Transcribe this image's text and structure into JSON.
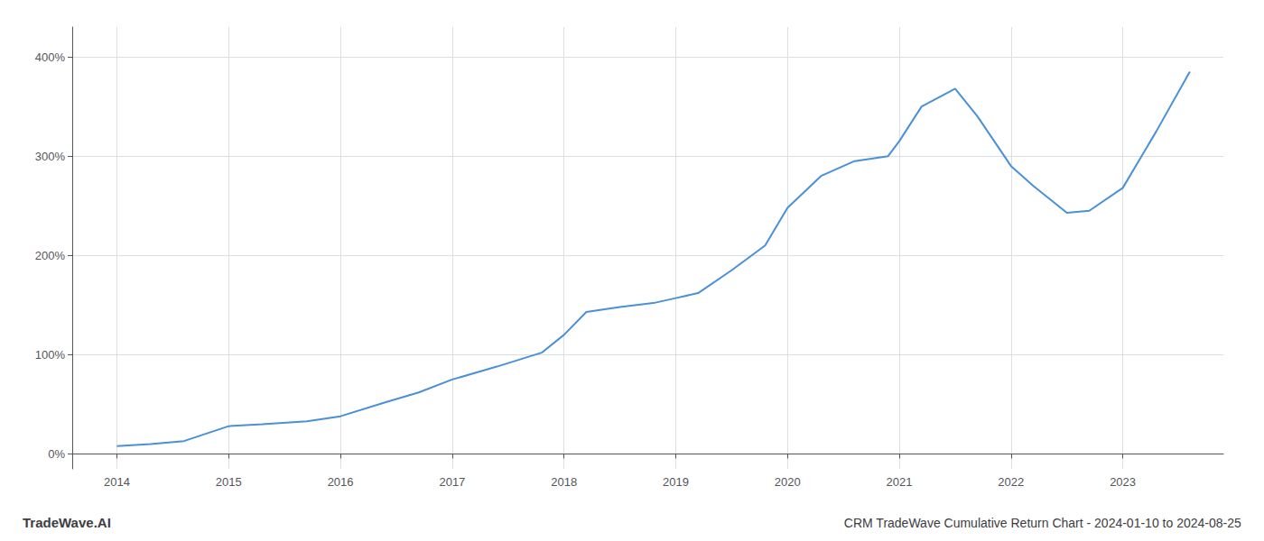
{
  "chart_data": {
    "type": "line",
    "title": "CRM TradeWave Cumulative Return Chart - 2024-01-10 to 2024-08-25",
    "annotations": [
      "TradeWave.AI"
    ],
    "x": [
      2014.0,
      2014.3,
      2014.6,
      2015.0,
      2015.3,
      2015.7,
      2016.0,
      2016.4,
      2016.7,
      2017.0,
      2017.4,
      2017.8,
      2018.0,
      2018.2,
      2018.5,
      2018.8,
      2019.0,
      2019.2,
      2019.5,
      2019.8,
      2020.0,
      2020.3,
      2020.6,
      2020.9,
      2021.0,
      2021.2,
      2021.5,
      2021.7,
      2022.0,
      2022.2,
      2022.5,
      2022.7,
      2023.0,
      2023.3,
      2023.6
    ],
    "values": [
      8,
      10,
      13,
      28,
      30,
      33,
      38,
      52,
      62,
      75,
      88,
      102,
      120,
      143,
      148,
      152,
      157,
      162,
      185,
      210,
      248,
      280,
      295,
      300,
      315,
      350,
      368,
      340,
      290,
      270,
      243,
      245,
      268,
      325,
      385
    ],
    "color": "#4a90d9",
    "xlim": [
      2013.6,
      2023.9
    ],
    "xticks": [
      2014,
      2015,
      2016,
      2017,
      2018,
      2019,
      2020,
      2021,
      2022,
      2023
    ],
    "ylim": [
      -15,
      430
    ],
    "yticks": [
      {
        "value": 0,
        "label": "0%"
      },
      {
        "value": 100,
        "label": "100%"
      },
      {
        "value": 200,
        "label": "200%"
      },
      {
        "value": 300,
        "label": "300%"
      },
      {
        "value": 400,
        "label": "400%"
      }
    ],
    "grid": true
  }
}
